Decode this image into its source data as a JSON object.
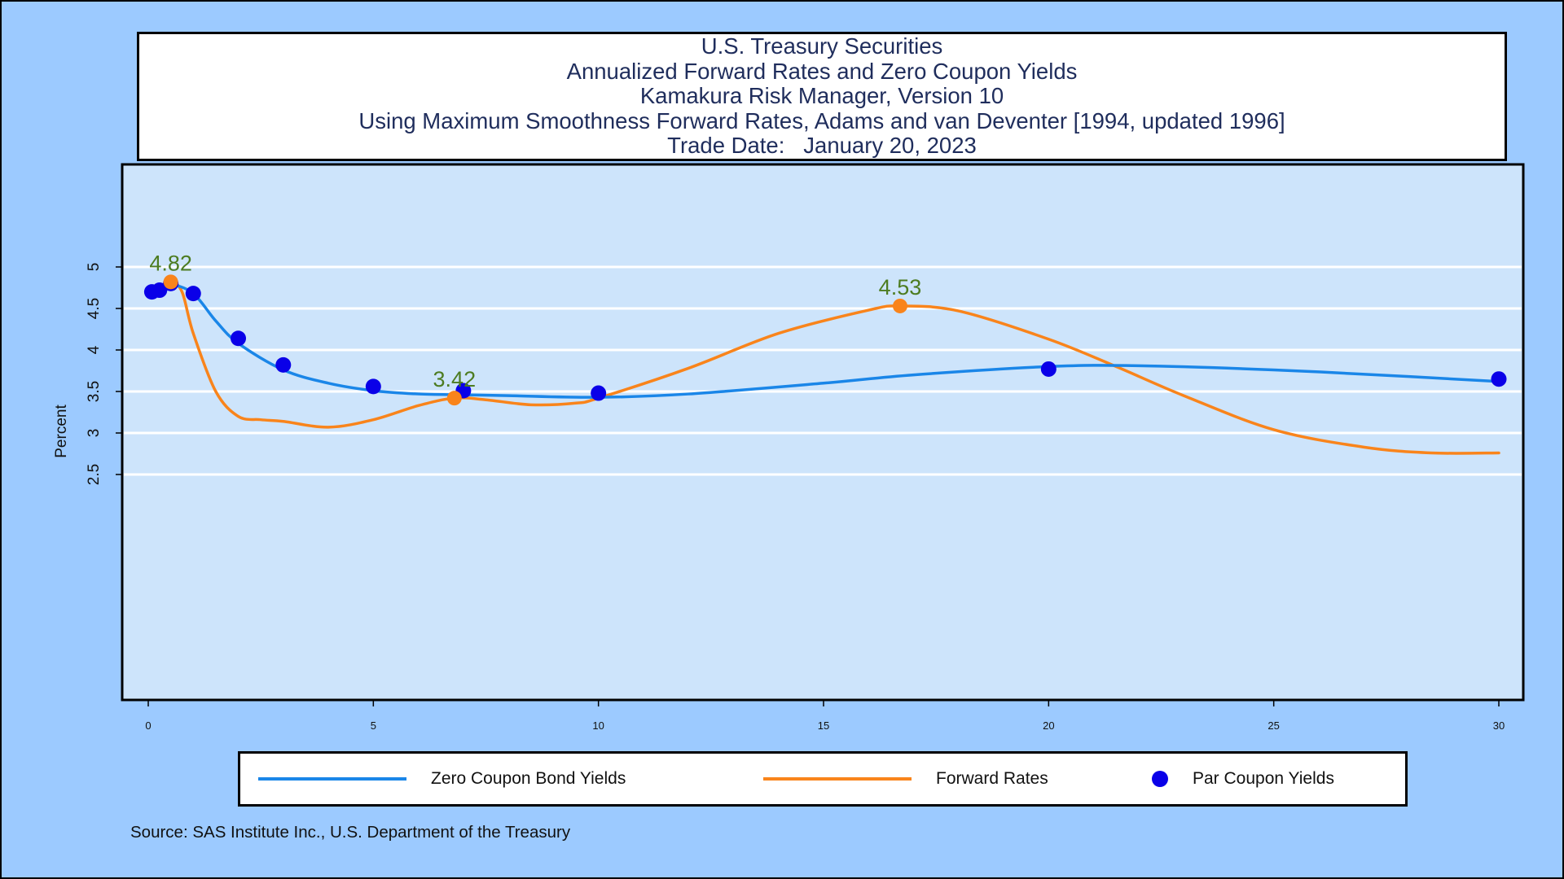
{
  "chart_data": {
    "type": "line",
    "title_lines": [
      "U.S. Treasury Securities",
      "Annualized Forward Rates and Zero Coupon Yields",
      "Kamakura Risk Manager, Version 10",
      "Using Maximum Smoothness Forward Rates, Adams and van Deventer [1994, updated 1996]",
      "Trade Date:   January 20, 2023"
    ],
    "ylabel": "Percent",
    "xlabel": "",
    "xlim": [
      0,
      30
    ],
    "ylim": [
      0,
      5.4
    ],
    "x_ticks": [
      0,
      5,
      10,
      15,
      20,
      25,
      30
    ],
    "y_ticks": [
      2.5,
      3,
      3.5,
      4,
      4.5,
      5
    ],
    "grid": true,
    "series": [
      {
        "name": "Zero Coupon Bond Yields",
        "color": "#1a86e8",
        "x": [
          0.08,
          0.25,
          0.5,
          1,
          1.5,
          2,
          3,
          4,
          5,
          6,
          7,
          8,
          10,
          12,
          15,
          17,
          20,
          22,
          25,
          28,
          30
        ],
        "values": [
          4.7,
          4.74,
          4.79,
          4.68,
          4.35,
          4.08,
          3.76,
          3.6,
          3.51,
          3.47,
          3.46,
          3.45,
          3.43,
          3.47,
          3.6,
          3.7,
          3.8,
          3.81,
          3.76,
          3.68,
          3.62
        ]
      },
      {
        "name": "Forward Rates",
        "color": "#f9841b",
        "x": [
          0.08,
          0.25,
          0.5,
          0.75,
          1,
          1.5,
          2,
          2.5,
          3,
          4,
          5,
          6,
          6.8,
          7.5,
          8.5,
          9.5,
          10,
          12,
          14,
          16,
          16.7,
          18,
          20,
          21.5,
          23,
          25,
          27,
          28.5,
          30
        ],
        "values": [
          4.7,
          4.76,
          4.82,
          4.7,
          4.2,
          3.5,
          3.2,
          3.16,
          3.14,
          3.07,
          3.16,
          3.33,
          3.42,
          3.4,
          3.34,
          3.36,
          3.42,
          3.78,
          4.2,
          4.48,
          4.53,
          4.47,
          4.13,
          3.8,
          3.45,
          3.04,
          2.83,
          2.76,
          2.76
        ]
      }
    ],
    "points": {
      "name": "Par Coupon Yields",
      "color": "#0a00e8",
      "x": [
        0.08,
        0.25,
        0.5,
        1,
        2,
        3,
        5,
        7,
        10,
        20,
        30
      ],
      "values": [
        4.7,
        4.72,
        4.8,
        4.68,
        4.14,
        3.82,
        3.56,
        3.51,
        3.48,
        3.77,
        3.65
      ]
    },
    "highlights": [
      {
        "x": 0.5,
        "value": 4.82,
        "label": "4.82",
        "color": "#f9841b",
        "label_color": "#4d7c21"
      },
      {
        "x": 6.8,
        "value": 3.42,
        "label": "3.42",
        "color": "#f9841b",
        "label_color": "#4d7c21"
      },
      {
        "x": 16.7,
        "value": 4.53,
        "label": "4.53",
        "color": "#f9841b",
        "label_color": "#4d7c21"
      }
    ],
    "legend_position": "bottom",
    "source": "Source: SAS Institute Inc., U.S. Department of the Treasury"
  },
  "colors": {
    "outer_bg": "#9ccaff",
    "plot_bg": "#cde4fb",
    "grid": "#ffffff"
  }
}
